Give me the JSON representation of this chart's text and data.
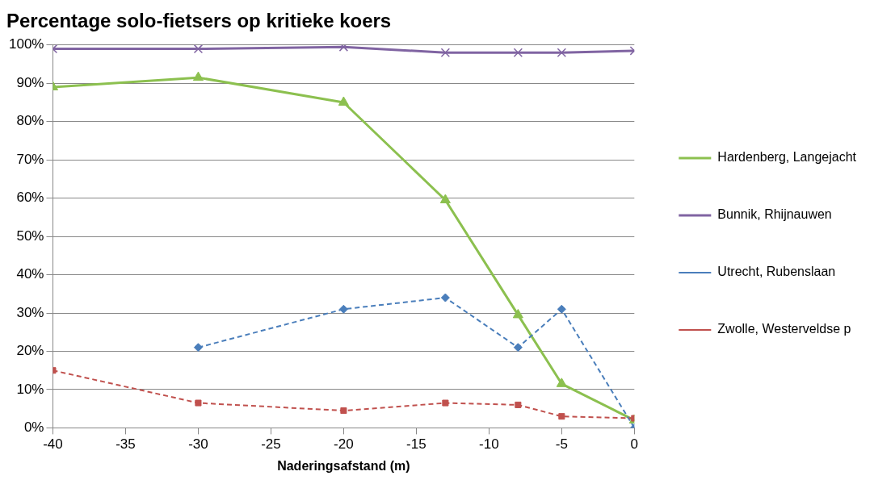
{
  "chart_data": {
    "type": "line",
    "title": "Percentage solo-fietsers op kritieke koers",
    "xlabel": "Naderingsafstand (m)",
    "xlim": [
      -40,
      0
    ],
    "xticks": [
      -40,
      -35,
      -30,
      -25,
      -20,
      -15,
      -10,
      -5,
      0
    ],
    "ylim": [
      0,
      100
    ],
    "yticks": [
      {
        "value": 0,
        "label": "0%"
      },
      {
        "value": 10,
        "label": "10%"
      },
      {
        "value": 20,
        "label": "20%"
      },
      {
        "value": 30,
        "label": "30%"
      },
      {
        "value": 40,
        "label": "40%"
      },
      {
        "value": 50,
        "label": "50%"
      },
      {
        "value": 60,
        "label": "60%"
      },
      {
        "value": 70,
        "label": "70%"
      },
      {
        "value": 80,
        "label": "80%"
      },
      {
        "value": 90,
        "label": "90%"
      },
      {
        "value": 100,
        "label": "100%"
      }
    ],
    "grid": "y",
    "legend": "right",
    "series": [
      {
        "name": "Hardenberg, Langejacht",
        "color": "#8cc04f",
        "marker": "triangle",
        "line_style": "solid",
        "x": [
          -40,
          -30,
          -20,
          -13,
          -8,
          -5,
          0
        ],
        "values": [
          89,
          91.5,
          85,
          59.5,
          29.5,
          11.5,
          2
        ]
      },
      {
        "name": "Bunnik, Rhijnauwen",
        "color": "#8064a2",
        "marker": "cross",
        "line_style": "solid",
        "x": [
          -40,
          -30,
          -20,
          -13,
          -8,
          -5,
          0
        ],
        "values": [
          99,
          99,
          99.5,
          98,
          98,
          98,
          98.5
        ]
      },
      {
        "name": "Utrecht, Rubenslaan",
        "color": "#4a7ebb",
        "marker": "diamond",
        "line_style": "dashed",
        "x": [
          -30,
          -20,
          -13,
          -8,
          -5,
          0
        ],
        "values": [
          21,
          31,
          34,
          21,
          31,
          0
        ]
      },
      {
        "name": "Zwolle, Westerveldse p",
        "color": "#c0504d",
        "marker": "square",
        "line_style": "dashed",
        "x": [
          -40,
          -30,
          -20,
          -13,
          -8,
          -5,
          0
        ],
        "values": [
          15,
          6.5,
          4.5,
          6.5,
          6,
          3,
          2.5
        ]
      }
    ]
  }
}
